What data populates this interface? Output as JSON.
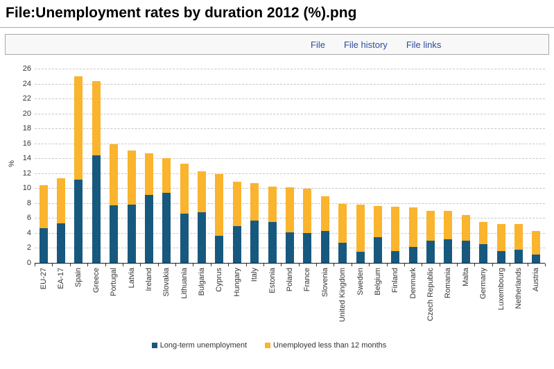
{
  "page": {
    "title": "File:Unemployment rates by duration 2012 (%).png"
  },
  "tabs": [
    "File",
    "File history",
    "File links"
  ],
  "chart_data": {
    "type": "bar",
    "stacked": true,
    "title": "",
    "xlabel": "",
    "ylabel": "%",
    "ylim": [
      0,
      26
    ],
    "ytick_step": 2,
    "grid": "dashed horizontal",
    "legend_position": "bottom",
    "categories": [
      "EU-27",
      "EA-17",
      "Spain",
      "Greece",
      "Portugal",
      "Latvia",
      "Ireland",
      "Slovakia",
      "Lithuania",
      "Bulgaria",
      "Cyprus",
      "Hungary",
      "Italy",
      "Estonia",
      "Poland",
      "France",
      "Slovenia",
      "United Kingdom",
      "Sweden",
      "Belgium",
      "Finland",
      "Denmark",
      "Czech Republic",
      "Romania",
      "Malta",
      "Germany",
      "Luxembourg",
      "Netherlands",
      "Austria"
    ],
    "series": [
      {
        "name": "Long-term unemployment",
        "color": "#17597E",
        "values": [
          4.6,
          5.3,
          11.1,
          14.4,
          7.7,
          7.8,
          9.1,
          9.4,
          6.6,
          6.8,
          3.6,
          4.9,
          5.7,
          5.5,
          4.1,
          4.0,
          4.3,
          2.7,
          1.5,
          3.4,
          1.6,
          2.1,
          3.0,
          3.2,
          3.0,
          2.5,
          1.6,
          1.8,
          1.1
        ]
      },
      {
        "name": "Unemployed less than 12 months",
        "color": "#FAB42D",
        "values": [
          5.8,
          6.0,
          13.9,
          9.9,
          8.2,
          7.2,
          5.6,
          4.6,
          6.7,
          5.5,
          8.3,
          6.0,
          5.0,
          4.7,
          6.0,
          5.9,
          4.6,
          5.2,
          6.3,
          4.2,
          5.9,
          5.3,
          4.0,
          3.8,
          3.4,
          3.0,
          3.6,
          3.4,
          3.2
        ]
      }
    ],
    "totals": [
      10.4,
      11.3,
      25.0,
      24.3,
      15.9,
      15.0,
      14.7,
      14.0,
      13.3,
      12.3,
      11.9,
      10.9,
      10.7,
      10.2,
      10.1,
      9.9,
      8.9,
      7.9,
      7.8,
      7.6,
      7.5,
      7.4,
      7.0,
      7.0,
      6.4,
      5.5,
      5.2,
      5.2,
      4.3
    ],
    "colors": {
      "gridline": "#c6c6c6",
      "axis": "#1a1a1a",
      "tick_text": "#333333"
    }
  }
}
